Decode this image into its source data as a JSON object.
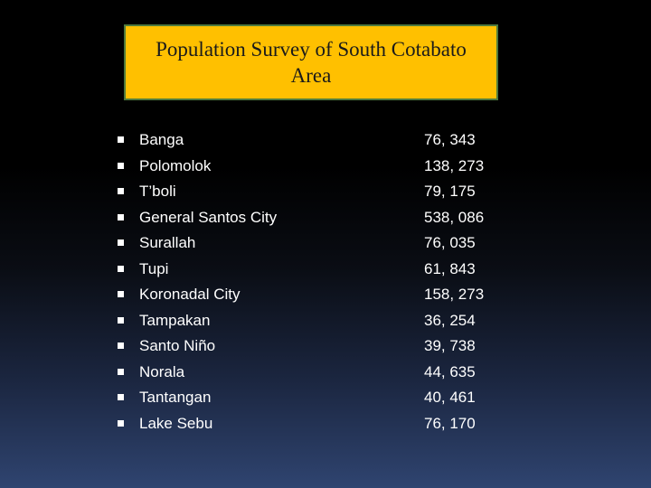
{
  "slide": {
    "title_line1": "Population Survey of South Cotabato",
    "title_line2": "Area",
    "rows": [
      {
        "name": "Banga",
        "population": "76, 343"
      },
      {
        "name": "Polomolok",
        "population": "138, 273"
      },
      {
        "name": "T’boli",
        "population": "79, 175"
      },
      {
        "name": "General Santos City",
        "population": "538, 086"
      },
      {
        "name": "Surallah",
        "population": "76, 035"
      },
      {
        "name": "Tupi",
        "population": "61, 843"
      },
      {
        "name": "Koronadal City",
        "population": "158, 273"
      },
      {
        "name": "Tampakan",
        "population": "36, 254"
      },
      {
        "name": "Santo Niño",
        "population": "39, 738"
      },
      {
        "name": "Norala",
        "population": "44, 635"
      },
      {
        "name": "Tantangan",
        "population": "40, 461"
      },
      {
        "name": "Lake Sebu",
        "population": "76, 170"
      }
    ]
  },
  "colors": {
    "title_fill": "#ffc000",
    "title_border": "#4e7a3e",
    "text": "#ffffff",
    "background_top": "#000000",
    "background_bottom": "#2f4470"
  },
  "icons": {
    "bullet": "square-bullet-icon"
  }
}
